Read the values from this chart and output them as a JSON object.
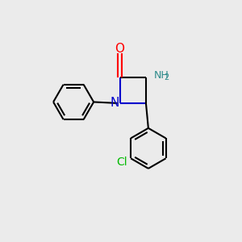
{
  "background_color": "#ebebeb",
  "atom_colors": {
    "C": "#000000",
    "N": "#0000cc",
    "O": "#ff0000",
    "Cl": "#00bb00",
    "NH2": "#2e8b8b"
  },
  "figsize": [
    3.0,
    3.0
  ],
  "dpi": 100
}
